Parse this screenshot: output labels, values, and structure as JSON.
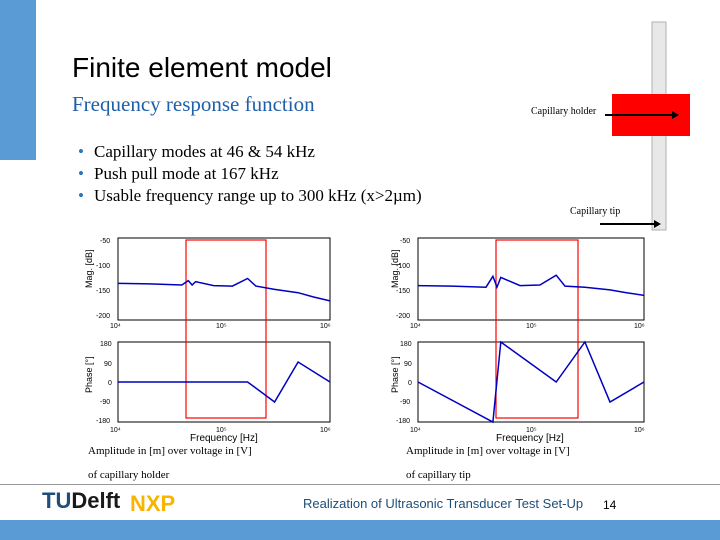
{
  "title": "Finite element model",
  "subtitle": "Frequency response function",
  "bullets": [
    "Capillary modes at 46 & 54 kHz",
    "Push pull mode at 167 kHz",
    "Usable frequency range up to 300 kHz (x>2µm)"
  ],
  "diagram": {
    "holder_label": "Capillary holder",
    "tip_label": "Capillary tip",
    "holder_color": "#ff0000"
  },
  "plots": {
    "left": {
      "mag_ylabel": "Mag. [dB]",
      "phase_ylabel": "Phase [°]",
      "xlabel": "Frequency [Hz]",
      "mag_ticks": [
        "-50",
        "-100",
        "-150",
        "-200"
      ],
      "phase_ticks": [
        "180",
        "90",
        "0",
        "-90",
        "-180"
      ],
      "x_ticks": [
        "10⁴",
        "10⁵",
        "10⁶"
      ],
      "caption_line1": "Amplitude in [m] over voltage in [V]",
      "caption_line2": "of capillary holder"
    },
    "right": {
      "mag_ylabel": "Mag. [dB]",
      "phase_ylabel": "Phase [°]",
      "xlabel": "Frequency [Hz]",
      "mag_ticks": [
        "-50",
        "-100",
        "-150",
        "-200"
      ],
      "phase_ticks": [
        "180",
        "90",
        "0",
        "-90",
        "-180"
      ],
      "x_ticks": [
        "10⁴",
        "10⁵",
        "10⁶"
      ],
      "caption_line1": "Amplitude in [m] over voltage in [V]",
      "caption_line2": "of capillary tip"
    }
  },
  "chart_data": [
    {
      "type": "line",
      "title": "",
      "xlabel": "Frequency [Hz]",
      "ylabel": "Mag. [dB]",
      "xscale": "log",
      "xlim": [
        10000,
        1000000
      ],
      "ylim": [
        -200,
        -50
      ],
      "series": [
        {
          "x": [
            10000,
            20000,
            40000,
            46000,
            50000,
            54000,
            80000,
            120000,
            167000,
            200000,
            300000,
            500000,
            700000,
            1000000
          ],
          "values": [
            -133,
            -134,
            -136,
            -128,
            -136,
            -130,
            -137,
            -138,
            -124,
            -138,
            -144,
            -150,
            -158,
            -165
          ]
        }
      ]
    },
    {
      "type": "line",
      "title": "",
      "xlabel": "Frequency [Hz]",
      "ylabel": "Phase [°]",
      "xscale": "log",
      "xlim": [
        10000,
        1000000
      ],
      "ylim": [
        -180,
        180
      ],
      "series": [
        {
          "x": [
            10000,
            46000,
            54000,
            167000,
            300000,
            500000,
            1000000
          ],
          "values": [
            0,
            0,
            0,
            0,
            -90,
            90,
            0
          ]
        }
      ]
    },
    {
      "type": "line",
      "title": "",
      "xlabel": "Frequency [Hz]",
      "ylabel": "Mag. [dB]",
      "xscale": "log",
      "xlim": [
        10000,
        1000000
      ],
      "ylim": [
        -200,
        -50
      ],
      "series": [
        {
          "x": [
            10000,
            20000,
            40000,
            46000,
            50000,
            54000,
            80000,
            120000,
            167000,
            200000,
            300000,
            500000,
            700000,
            1000000
          ],
          "values": [
            -137,
            -138,
            -140,
            -120,
            -140,
            -122,
            -137,
            -136,
            -118,
            -138,
            -140,
            -145,
            -150,
            -155
          ]
        }
      ]
    },
    {
      "type": "line",
      "title": "",
      "xlabel": "Frequency [Hz]",
      "ylabel": "Phase [°]",
      "xscale": "log",
      "xlim": [
        10000,
        1000000
      ],
      "ylim": [
        -180,
        180
      ],
      "series": [
        {
          "x": [
            10000,
            46000,
            54000,
            167000,
            300000,
            500000,
            1000000
          ],
          "values": [
            0,
            -180,
            180,
            0,
            180,
            -90,
            0
          ]
        }
      ]
    }
  ],
  "footer": {
    "logo_tu_prefix": "TU",
    "logo_tu_suffix": "Delft",
    "logo_nxp": "NXP",
    "text": "Realization of Ultrasonic Transducer Test Set-Up",
    "page": "14"
  },
  "colors": {
    "accent": "#5b9bd5",
    "subtitle": "#1f5fa8",
    "plot_line": "#0000c0",
    "highlight": "#ff0000"
  }
}
